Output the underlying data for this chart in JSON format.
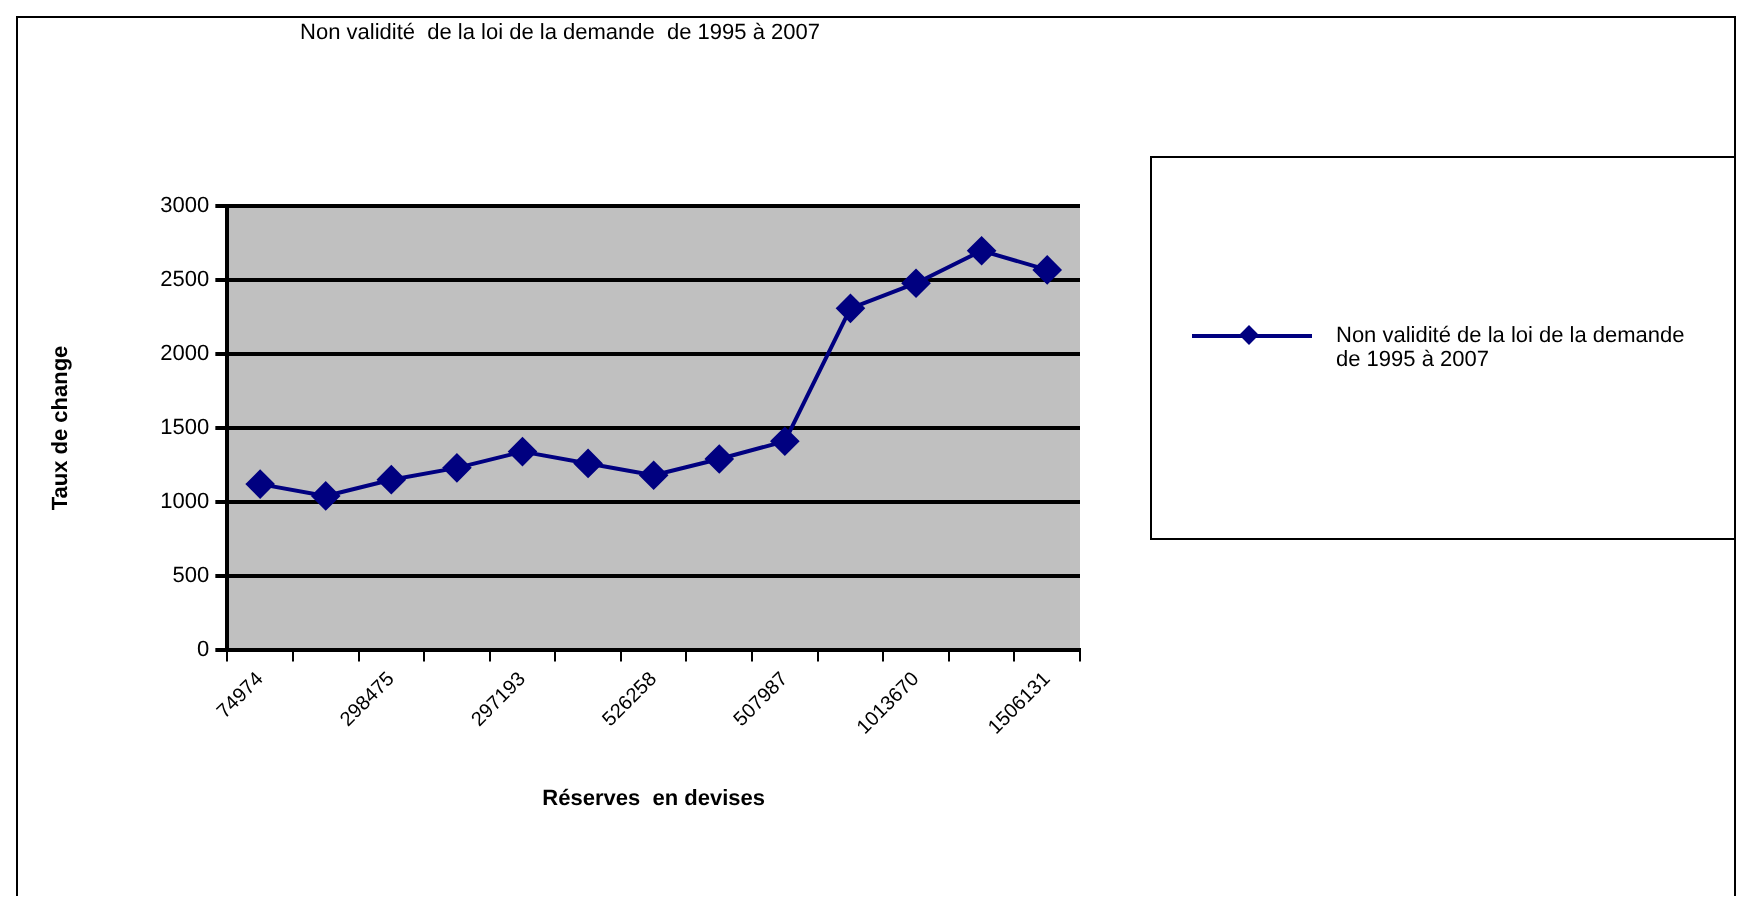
{
  "chart_data": {
    "type": "line",
    "title": "Non validité  de la loi de la demande  de 1995 à 2007",
    "xlabel": "Réserves  en devises",
    "ylabel": "Taux de change",
    "categories": [
      "74974",
      null,
      "298475",
      null,
      "297193",
      null,
      "526258",
      null,
      "507987",
      null,
      "1013670",
      null,
      "1506131"
    ],
    "series": [
      {
        "name": "Non validité de la loi de la demande de 1995 à 2007",
        "color": "#000080",
        "values": [
          1120,
          1040,
          1150,
          1230,
          1340,
          1260,
          1180,
          1290,
          1410,
          2310,
          2480,
          2700,
          2570
        ]
      }
    ],
    "ylim": [
      0,
      3000
    ],
    "yticks": [
      0,
      500,
      1000,
      1500,
      2000,
      2500,
      3000
    ],
    "grid": "y",
    "legend": "right",
    "marker": "diamond",
    "line_style": "solid"
  }
}
